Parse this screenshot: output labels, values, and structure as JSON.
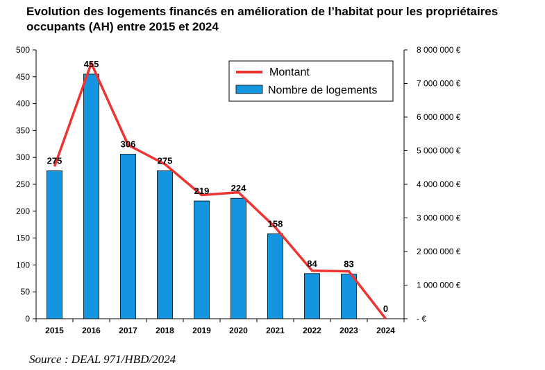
{
  "title": "Evolution des logements financés en amélioration de l’habitat pour les propriétaires occupants (AH) entre 2015 et 2024",
  "source": "Source : DEAL 971/HBD/2024",
  "chart_data": {
    "type": "bar",
    "categories": [
      "2015",
      "2016",
      "2017",
      "2018",
      "2019",
      "2020",
      "2021",
      "2022",
      "2023",
      "2024"
    ],
    "series": [
      {
        "name": "Nombre de logements",
        "type": "bar",
        "axis": "left",
        "color": "#1495e0",
        "values": [
          275,
          455,
          306,
          275,
          219,
          224,
          158,
          84,
          83,
          0
        ],
        "data_labels": [
          "275",
          "455",
          "306",
          "275",
          "219",
          "224",
          "158",
          "84",
          "83",
          "0"
        ]
      },
      {
        "name": "Montant",
        "type": "line",
        "axis": "right",
        "color": "#ee3333",
        "values": [
          4530000,
          7600000,
          5170000,
          4600000,
          3680000,
          3760000,
          2720000,
          1430000,
          1410000,
          0
        ]
      }
    ],
    "y_left": {
      "min": 0,
      "max": 500,
      "step": 50,
      "ticks": [
        "0",
        "50",
        "100",
        "150",
        "200",
        "250",
        "300",
        "350",
        "400",
        "450",
        "500"
      ]
    },
    "y_right": {
      "min": 0,
      "max": 8000000,
      "step": 1000000,
      "ticks": [
        "- €",
        "1 000 000 €",
        "2 000 000 €",
        "3 000 000 €",
        "4 000 000 €",
        "5 000 000 €",
        "6 000 000 €",
        "7 000 000 €",
        "8 000 000 €"
      ]
    },
    "legend": {
      "position": "top-right",
      "entries": [
        "Montant",
        "Nombre de logements"
      ]
    },
    "grid": false
  }
}
